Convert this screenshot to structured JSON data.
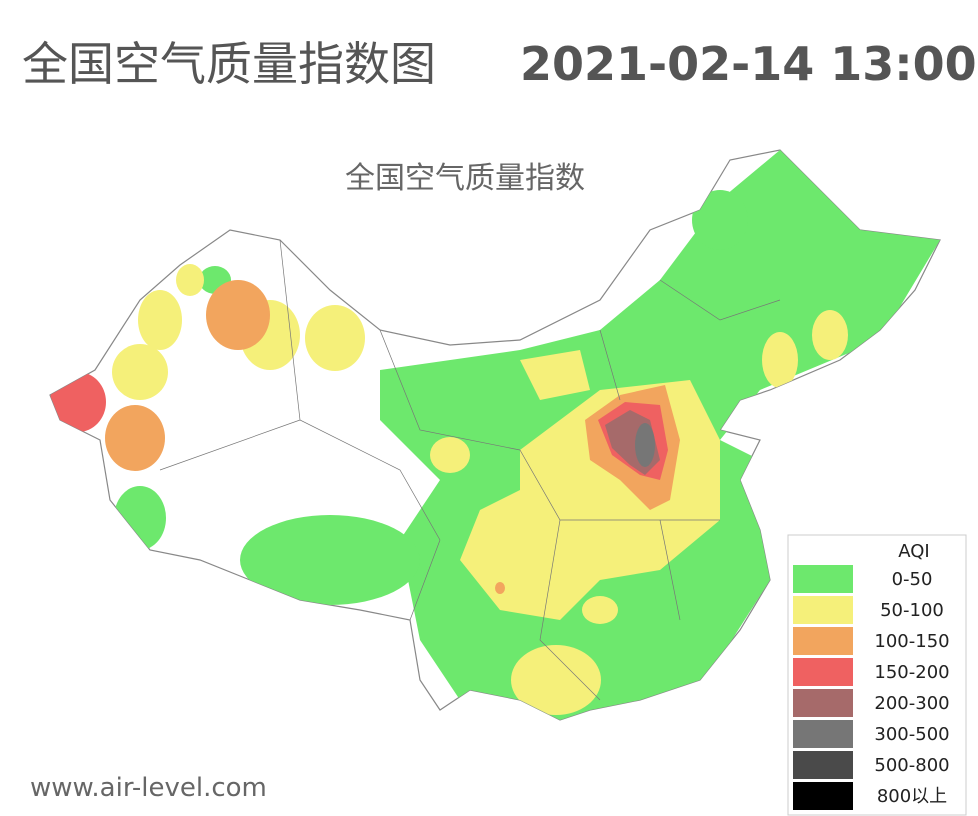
{
  "header": {
    "title": "全国空气质量指数图",
    "timestamp": "2021-02-14 13:00"
  },
  "map": {
    "subtitle": "全国空气质量指数",
    "source": "www.air-level.com"
  },
  "legend": {
    "title": "AQI",
    "items": [
      {
        "label": "0-50",
        "color": "#6de86d"
      },
      {
        "label": "50-100",
        "color": "#f5f07a"
      },
      {
        "label": "100-150",
        "color": "#f2a55e"
      },
      {
        "label": "150-200",
        "color": "#ef6161"
      },
      {
        "label": "200-300",
        "color": "#a66a6a"
      },
      {
        "label": "300-500",
        "color": "#767676"
      },
      {
        "label": "500-800",
        "color": "#4a4a4a"
      },
      {
        "label": "800以上",
        "color": "#000000"
      }
    ]
  }
}
